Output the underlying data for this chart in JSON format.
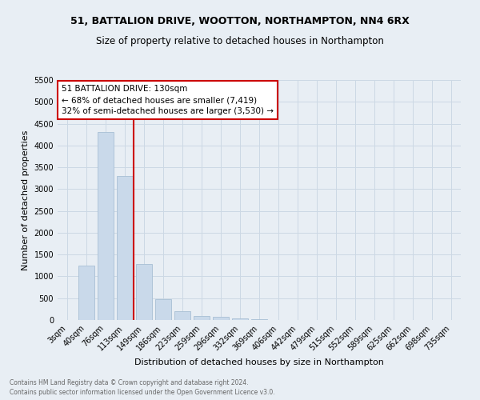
{
  "title1": "51, BATTALION DRIVE, WOOTTON, NORTHAMPTON, NN4 6RX",
  "title2": "Size of property relative to detached houses in Northampton",
  "xlabel": "Distribution of detached houses by size in Northampton",
  "ylabel": "Number of detached properties",
  "footnote": "Contains HM Land Registry data © Crown copyright and database right 2024.\nContains public sector information licensed under the Open Government Licence v3.0.",
  "bar_labels": [
    "3sqm",
    "40sqm",
    "76sqm",
    "113sqm",
    "149sqm",
    "186sqm",
    "223sqm",
    "259sqm",
    "296sqm",
    "332sqm",
    "369sqm",
    "406sqm",
    "442sqm",
    "479sqm",
    "515sqm",
    "552sqm",
    "589sqm",
    "625sqm",
    "662sqm",
    "698sqm",
    "735sqm"
  ],
  "bar_values": [
    0,
    1250,
    4300,
    3300,
    1280,
    480,
    195,
    90,
    65,
    40,
    20,
    0,
    0,
    0,
    0,
    0,
    0,
    0,
    0,
    0,
    0
  ],
  "bar_color": "#c9d9ea",
  "bar_edge_color": "#a8bfd4",
  "red_line_color": "#cc0000",
  "annotation_text": "51 BATTALION DRIVE: 130sqm\n← 68% of detached houses are smaller (7,419)\n32% of semi-detached houses are larger (3,530) →",
  "annotation_box_color": "#ffffff",
  "annotation_border_color": "#cc0000",
  "ylim": [
    0,
    5500
  ],
  "yticks": [
    0,
    500,
    1000,
    1500,
    2000,
    2500,
    3000,
    3500,
    4000,
    4500,
    5000,
    5500
  ],
  "grid_color": "#ccd8e4",
  "bg_color": "#e8eef4",
  "title1_fontsize": 9,
  "title2_fontsize": 8.5,
  "xlabel_fontsize": 8,
  "ylabel_fontsize": 8,
  "tick_fontsize": 7,
  "footnote_fontsize": 5.5,
  "footnote_color": "#666666"
}
